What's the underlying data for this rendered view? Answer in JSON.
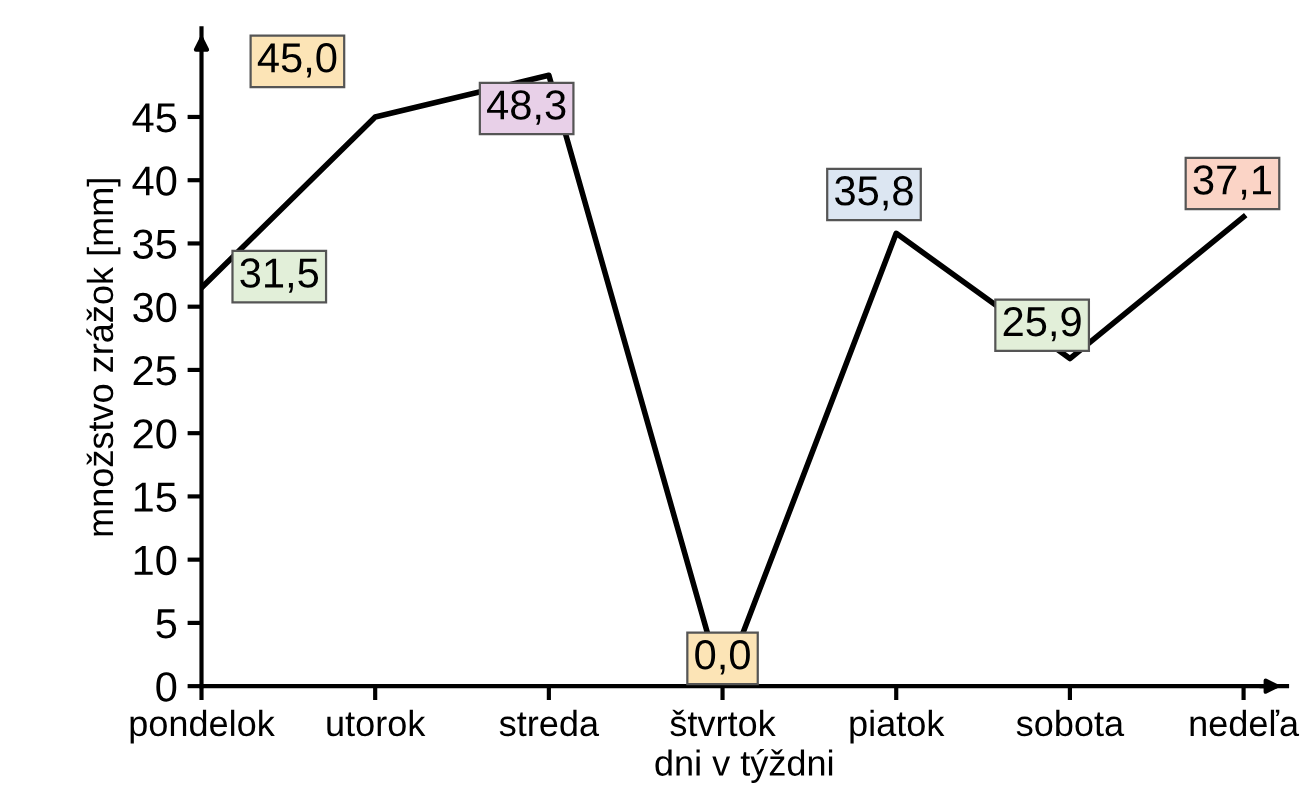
{
  "chart_data": {
    "type": "line",
    "xlabel": "dni v týždni",
    "ylabel": "množstvo zrážok [mm]",
    "categories": [
      "pondelok",
      "utorok",
      "streda",
      "štvrtok",
      "piatok",
      "sobota",
      "nedeľa"
    ],
    "values": [
      31.5,
      45.0,
      48.3,
      0.0,
      35.8,
      25.9,
      37.1
    ],
    "value_labels": [
      "31,5",
      "45,0",
      "48,3",
      "0,0",
      "35,8",
      "25,9",
      "37,1"
    ],
    "colors": [
      "#e2efd9",
      "#fce4b6",
      "#e8d0e8",
      "#fce4b6",
      "#dce6f2",
      "#e2efd9",
      "#fbd4c6"
    ],
    "color": "#000000",
    "ylim": [
      0,
      52
    ],
    "yticks": [
      0,
      5,
      10,
      15,
      20,
      25,
      30,
      35,
      40,
      45
    ],
    "grid": false,
    "marker": "none",
    "line_style": "solid"
  }
}
